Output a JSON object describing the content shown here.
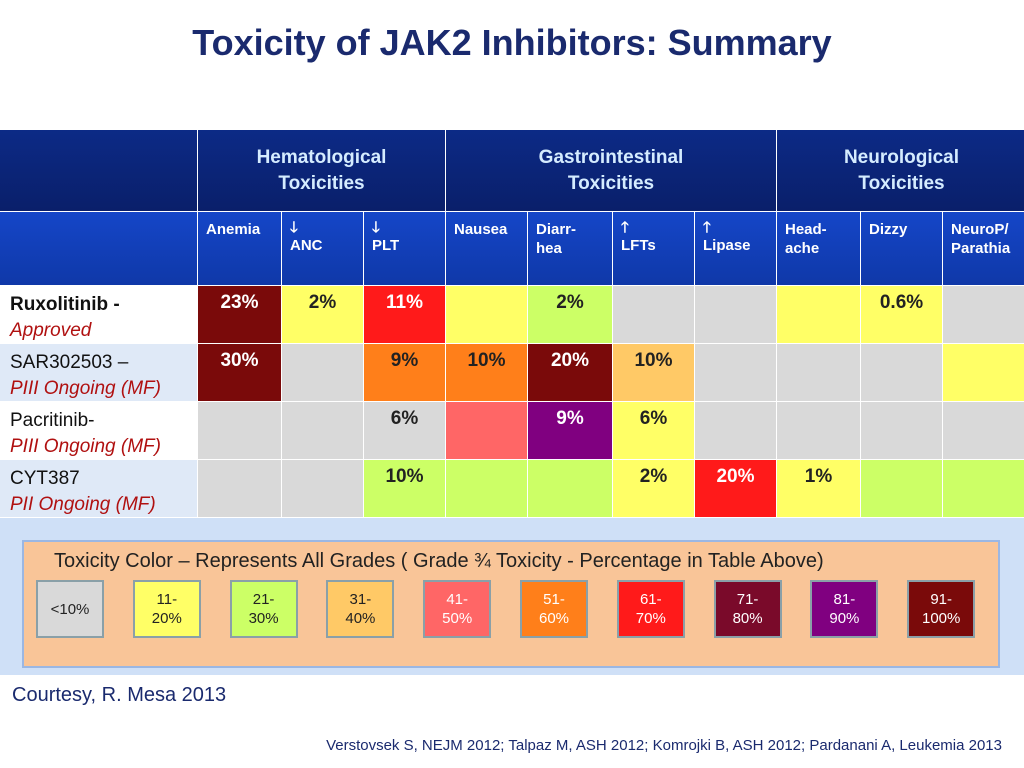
{
  "title": "Toxicity of JAK2 Inhibitors: Summary",
  "table": {
    "groups": [
      {
        "label": "Hematological\nToxicities"
      },
      {
        "label": "Gastrointestinal\nToxicities"
      },
      {
        "label": "Neurological\nToxicities"
      }
    ],
    "columns": [
      {
        "arrow": "",
        "label": "Anemia"
      },
      {
        "arrow": "🡓",
        "label": "ANC"
      },
      {
        "arrow": "🡓",
        "label": "PLT"
      },
      {
        "arrow": "",
        "label": "Nausea"
      },
      {
        "arrow": "",
        "label": "Diarr-\nhea"
      },
      {
        "arrow": "🡑",
        "label": "LFTs"
      },
      {
        "arrow": "🡑",
        "label": "Lipase"
      },
      {
        "arrow": "",
        "label": "Head-\nache"
      },
      {
        "arrow": "",
        "label": "Dizzy"
      },
      {
        "arrow": "",
        "label": "NeuroP/\nParathia"
      }
    ],
    "rows": [
      {
        "name": "Ruxolitinib -",
        "status": "Approved",
        "cells": [
          {
            "text": "23%",
            "bg": "#7a0a0a",
            "fg": "#ffffff"
          },
          {
            "text": "2%",
            "bg": "#ffff66",
            "fg": "#222222"
          },
          {
            "text": "11%",
            "bg": "#ff1a1a",
            "fg": "#ffffff"
          },
          {
            "text": "",
            "bg": "#ffff66",
            "fg": "#222222"
          },
          {
            "text": "2%",
            "bg": "#ccff66",
            "fg": "#222222"
          },
          {
            "text": "",
            "bg": "#d9d9d9",
            "fg": "#222222"
          },
          {
            "text": "",
            "bg": "#d9d9d9",
            "fg": "#222222"
          },
          {
            "text": "",
            "bg": "#ffff66",
            "fg": "#222222"
          },
          {
            "text": "0.6%",
            "bg": "#ffff66",
            "fg": "#222222"
          },
          {
            "text": "",
            "bg": "#d9d9d9",
            "fg": "#222222"
          }
        ]
      },
      {
        "name": "SAR302503 –",
        "status": "PIII Ongoing (MF)",
        "cells": [
          {
            "text": "30%",
            "bg": "#7a0a0a",
            "fg": "#ffffff"
          },
          {
            "text": "",
            "bg": "#d9d9d9",
            "fg": "#222222"
          },
          {
            "text": "9%",
            "bg": "#ff7f1a",
            "fg": "#222222"
          },
          {
            "text": "10%",
            "bg": "#ff7f1a",
            "fg": "#222222"
          },
          {
            "text": "20%",
            "bg": "#7a0a0a",
            "fg": "#ffffff"
          },
          {
            "text": "10%",
            "bg": "#ffc966",
            "fg": "#222222"
          },
          {
            "text": "",
            "bg": "#d9d9d9",
            "fg": "#222222"
          },
          {
            "text": "",
            "bg": "#d9d9d9",
            "fg": "#222222"
          },
          {
            "text": "",
            "bg": "#d9d9d9",
            "fg": "#222222"
          },
          {
            "text": "",
            "bg": "#ffff66",
            "fg": "#222222"
          }
        ]
      },
      {
        "name": "Pacritinib-",
        "status": "PIII Ongoing (MF)",
        "cells": [
          {
            "text": "",
            "bg": "#d9d9d9",
            "fg": "#222222"
          },
          {
            "text": "",
            "bg": "#d9d9d9",
            "fg": "#222222"
          },
          {
            "text": "6%",
            "bg": "#d9d9d9",
            "fg": "#222222"
          },
          {
            "text": "",
            "bg": "#ff6666",
            "fg": "#222222"
          },
          {
            "text": "9%",
            "bg": "#800080",
            "fg": "#ffffff"
          },
          {
            "text": "6%",
            "bg": "#ffff66",
            "fg": "#222222"
          },
          {
            "text": "",
            "bg": "#d9d9d9",
            "fg": "#222222"
          },
          {
            "text": "",
            "bg": "#d9d9d9",
            "fg": "#222222"
          },
          {
            "text": "",
            "bg": "#d9d9d9",
            "fg": "#222222"
          },
          {
            "text": "",
            "bg": "#d9d9d9",
            "fg": "#222222"
          }
        ]
      },
      {
        "name": "CYT387",
        "status": "PII Ongoing (MF)",
        "cells": [
          {
            "text": "",
            "bg": "#d9d9d9",
            "fg": "#222222"
          },
          {
            "text": "",
            "bg": "#d9d9d9",
            "fg": "#222222"
          },
          {
            "text": "10%",
            "bg": "#ccff66",
            "fg": "#222222"
          },
          {
            "text": "",
            "bg": "#ccff66",
            "fg": "#222222"
          },
          {
            "text": "",
            "bg": "#ccff66",
            "fg": "#222222"
          },
          {
            "text": "2%",
            "bg": "#ffff66",
            "fg": "#222222"
          },
          {
            "text": "20%",
            "bg": "#ff1a1a",
            "fg": "#ffffff"
          },
          {
            "text": "1%",
            "bg": "#ffff66",
            "fg": "#222222"
          },
          {
            "text": "",
            "bg": "#ccff66",
            "fg": "#222222"
          },
          {
            "text": "",
            "bg": "#ccff66",
            "fg": "#222222"
          }
        ]
      }
    ]
  },
  "legend": {
    "title": "Toxicity Color – Represents All Grades ( Grade ¾ Toxicity - Percentage in Table Above)",
    "swatches": [
      {
        "label": "<10%",
        "bg": "#d9d9d9",
        "fg": "#222222"
      },
      {
        "label": "11-\n20%",
        "bg": "#ffff66",
        "fg": "#222222"
      },
      {
        "label": "21-\n30%",
        "bg": "#ccff66",
        "fg": "#222222"
      },
      {
        "label": "31-\n40%",
        "bg": "#ffc966",
        "fg": "#222222"
      },
      {
        "label": "41-\n50%",
        "bg": "#ff6666",
        "fg": "#ffffff"
      },
      {
        "label": "51-\n60%",
        "bg": "#ff7f1a",
        "fg": "#ffffff"
      },
      {
        "label": "61-\n70%",
        "bg": "#ff1a1a",
        "fg": "#ffffff"
      },
      {
        "label": "71-\n80%",
        "bg": "#7a0a2a",
        "fg": "#ffffff"
      },
      {
        "label": "81-\n90%",
        "bg": "#800080",
        "fg": "#ffffff"
      },
      {
        "label": "91-\n100%",
        "bg": "#7a0a0a",
        "fg": "#ffffff"
      }
    ]
  },
  "courtesy": "Courtesy, R. Mesa 2013",
  "references": "Verstovsek  S, NEJM 2012; Talpaz M, ASH 2012; Komrojki B, ASH 2012; Pardanani A, Leukemia 2013"
}
